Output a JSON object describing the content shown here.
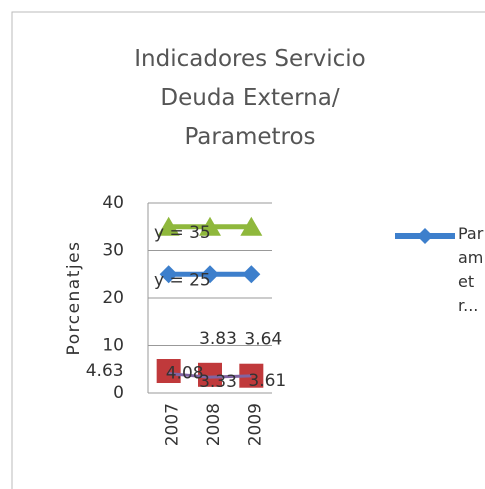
{
  "chart_data": {
    "type": "line",
    "title": "Indicadores Servicio Deuda Externa/ Parametros",
    "y_label": "Porcenatjes",
    "categories": [
      "2007",
      "2008",
      "2009"
    ],
    "ylim": [
      0,
      40
    ],
    "yticks": [
      0,
      10,
      20,
      30,
      40
    ],
    "grid": true,
    "series": [
      {
        "name": "Parametr...",
        "color": "#3d7fcc",
        "marker": "diamond",
        "values": [
          25,
          25,
          25
        ],
        "trendline_label": "y = 25"
      },
      {
        "color": "#8fb83c",
        "marker": "triangle",
        "values": [
          35,
          35,
          35
        ],
        "trendline_label": "y = 35"
      },
      {
        "color": "#c0393b",
        "marker": "square",
        "values": [
          4.63,
          3.83,
          3.64
        ]
      },
      {
        "color": "#8064a2",
        "marker": "none",
        "values": [
          4.08,
          3.33,
          3.61
        ]
      }
    ]
  }
}
